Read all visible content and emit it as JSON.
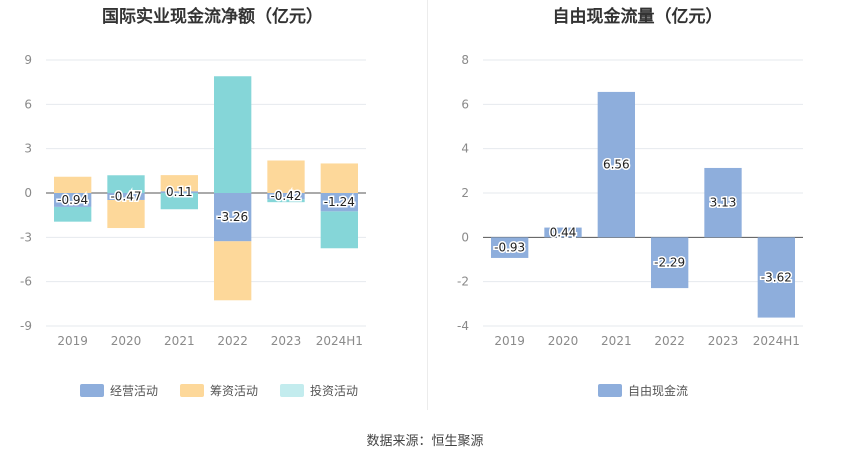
{
  "colors": {
    "operating": "#8eaedc",
    "financing": "#fdd89a",
    "investing": "#85d6d8",
    "free_cash_flow": "#8eaedc",
    "grid": "#e6e9ee",
    "axis_text": "#8a8a8a"
  },
  "source_text": "数据来源：恒生聚源",
  "chart_data": [
    {
      "type": "bar",
      "stacked": true,
      "title": "国际实业现金流净额（亿元）",
      "categories": [
        "2019",
        "2020",
        "2021",
        "2022",
        "2023",
        "2024H1"
      ],
      "ylim": [
        -9,
        9
      ],
      "yticks": [
        9,
        6,
        3,
        0,
        -3,
        -6,
        -9
      ],
      "ytick_labels": [
        "9",
        "6",
        "3",
        "0",
        "-3",
        "-6",
        "-9"
      ],
      "grid": true,
      "legend_position": "bottom",
      "series": [
        {
          "name": "经营活动",
          "color_key": "operating",
          "values": [
            -0.94,
            -0.47,
            0.11,
            -3.26,
            -0.42,
            -1.24
          ],
          "labels": [
            "-0.94",
            "-0.47",
            "0.11",
            "-3.26",
            "-0.42",
            "-1.24"
          ]
        },
        {
          "name": "筹资活动",
          "color_key": "financing",
          "values": [
            1.1,
            -1.9,
            1.1,
            -4.0,
            2.2,
            2.0
          ]
        },
        {
          "name": "投资活动",
          "color_key": "investing",
          "values": [
            -1.0,
            1.2,
            -1.1,
            7.9,
            -0.2,
            -2.5
          ]
        }
      ]
    },
    {
      "type": "bar",
      "title": "自由现金流量（亿元）",
      "categories": [
        "2019",
        "2020",
        "2021",
        "2022",
        "2023",
        "2024H1"
      ],
      "ylim": [
        -4,
        8
      ],
      "yticks": [
        8,
        6,
        4,
        2,
        0,
        -2,
        -4
      ],
      "ytick_labels": [
        "8",
        "6",
        "4",
        "2",
        "0",
        "-2",
        "-4"
      ],
      "grid": true,
      "legend_position": "bottom",
      "series": [
        {
          "name": "自由现金流",
          "color_key": "free_cash_flow",
          "values": [
            -0.93,
            0.44,
            6.56,
            -2.29,
            3.13,
            -3.62
          ],
          "labels": [
            "-0.93",
            "0.44",
            "6.56",
            "-2.29",
            "3.13",
            "-3.62"
          ]
        }
      ]
    }
  ]
}
